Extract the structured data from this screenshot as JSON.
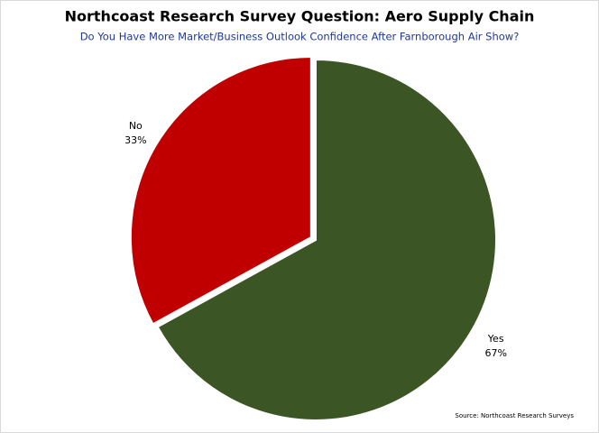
{
  "chart_data": {
    "type": "pie",
    "title": "Northcoast Research Survey Question: Aero Supply Chain",
    "subtitle": "Do You Have More Market/Business Outlook Confidence After Farnborough Air Show?",
    "categories": [
      "Yes",
      "No"
    ],
    "values": [
      67,
      33
    ],
    "value_labels": [
      "67%",
      "33%"
    ],
    "colors": [
      "#3b5525",
      "#c00000"
    ],
    "source": "Source: Northcoast Research Surveys"
  }
}
